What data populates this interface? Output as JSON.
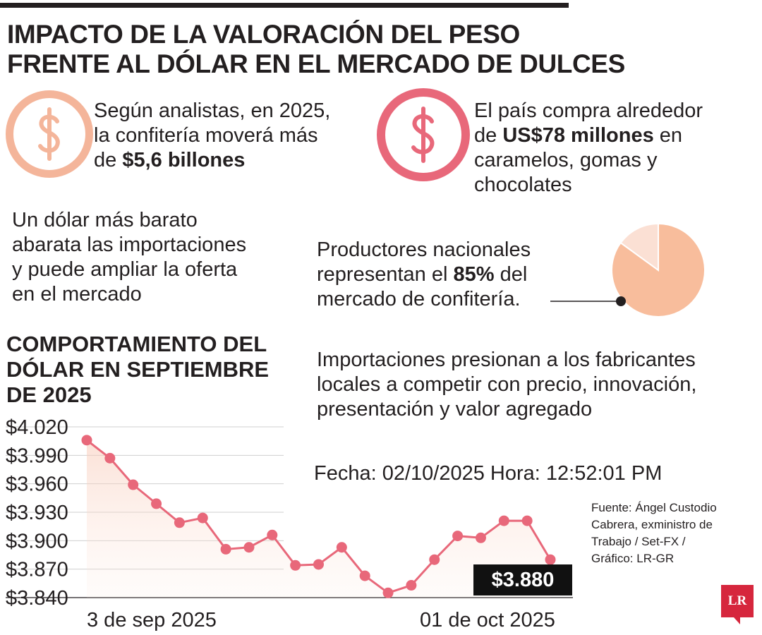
{
  "header": {
    "title_line1": "IMPACTO DE LA VALORACIÓN DEL PESO",
    "title_line2": "FRENTE AL DÓLAR EN EL MERCADO DE DULCES"
  },
  "stats": {
    "s1_line1": "Según analistas, en 2025,",
    "s1_line2": "la confitería moverá más",
    "s1_line3_pre": "de ",
    "s1_line3_bold": "$5,6 billones",
    "s2_line1": "El país compra alrededor",
    "s2_line2_pre": "de ",
    "s2_line2_bold": "US$78 millones",
    "s2_line2_post": " en",
    "s2_line3": "caramelos, gomas y",
    "s2_line4": "chocolates",
    "s3_line1": "Un dólar más barato",
    "s3_line2": "abarata las importaciones",
    "s3_line3": "y puede ampliar la oferta",
    "s3_line4": "en el mercado",
    "s4_line1": "Productores nacionales",
    "s4_line2_pre": "representan el ",
    "s4_line2_bold": "85%",
    "s4_line2_post": " del",
    "s4_line3": "mercado de confitería.",
    "s5_line1": "Importaciones presionan a los fabricantes",
    "s5_line2": "locales a competir con precio, innovación,",
    "s5_line3": "presentación y valor agregado"
  },
  "pie": {
    "share": 85,
    "color_main": "#f8bd9c",
    "color_rest": "#fbe0d4"
  },
  "stamp": {
    "date_label": "Fecha: ",
    "date_value": "02/10/2025",
    "time_label": " Hora: ",
    "time_value": "12:52:01 PM"
  },
  "source": {
    "line1": "Fuente: Ángel Custodio",
    "line2": "Cabrera, exministro de",
    "line3": "Trabajo / Set-FX /",
    "line4": "Gráfico: LR-GR"
  },
  "logo": {
    "text": "LR"
  },
  "colors": {
    "accent": "#e8687a",
    "peach": "#f4b59a",
    "dark": "#231f20"
  },
  "icons": {
    "left": "dollar-circle-icon",
    "right": "dollar-circle-icon"
  },
  "chart_data": {
    "type": "line",
    "title_line1": "COMPORTAMIENTO DEL",
    "title_line2": "DÓLAR EN SEPTIEMBRE",
    "title_line3": "DE 2025",
    "ylim": [
      3840,
      4020
    ],
    "yticks": [
      4020,
      3990,
      3960,
      3930,
      3900,
      3870,
      3840
    ],
    "ytick_labels": [
      "$4.020",
      "$3.990",
      "$3.960",
      "$3.930",
      "$3.900",
      "$3.870",
      "$3.840"
    ],
    "x_first_label": "3 de sep 2025",
    "x_last_label": "01 de oct 2025",
    "values": [
      4006,
      3987,
      3959,
      3939,
      3919,
      3924,
      3891,
      3893,
      3906,
      3874,
      3875,
      3893,
      3863,
      3845,
      3853,
      3880,
      3905,
      3903,
      3921,
      3921,
      3880
    ],
    "latest_label": "$3.880",
    "grid": true
  }
}
